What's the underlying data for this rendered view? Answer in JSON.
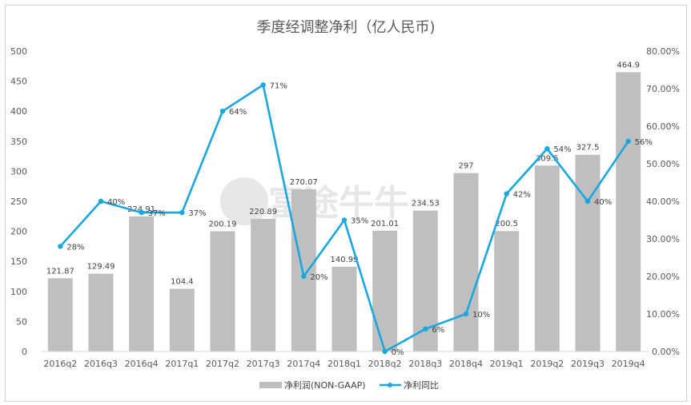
{
  "chart_data": {
    "type": "bar",
    "title": "季度经调整净利（亿人民币)",
    "watermark": "富途牛牛",
    "categories": [
      "2016q2",
      "2016q3",
      "2016q4",
      "2017q1",
      "2017q2",
      "2017q3",
      "2017q4",
      "2018q1",
      "2018q2",
      "2018q3",
      "2018q4",
      "2019q1",
      "2019q2",
      "2019q3",
      "2019q4"
    ],
    "series": [
      {
        "name": "净利润(NON-GAAP)",
        "type": "bar",
        "axis": "left",
        "color": "#bfbfbf",
        "values": [
          121.87,
          129.49,
          224.91,
          104.4,
          200.19,
          220.89,
          270.07,
          140.99,
          201.01,
          234.53,
          297,
          200.5,
          309.5,
          327.5,
          464.9
        ],
        "labels": [
          "121.87",
          "129.49",
          "224.91",
          "104.4",
          "200.19",
          "220.89",
          "270.07",
          "140.99",
          "201.01",
          "234.53",
          "297",
          "200.5",
          "309.5",
          "327.5",
          "464.9"
        ]
      },
      {
        "name": "净利同比",
        "type": "line",
        "axis": "right",
        "color": "#1aa7df",
        "values": [
          0.28,
          0.4,
          0.37,
          0.37,
          0.64,
          0.71,
          0.2,
          0.35,
          0.0,
          0.06,
          0.1,
          0.42,
          0.54,
          0.4,
          0.56
        ],
        "labels": [
          "28%",
          "40%",
          "37%",
          "37%",
          "64%",
          "71%",
          "20%",
          "35%",
          "0%",
          "6%",
          "10%",
          "42%",
          "54%",
          "40%",
          "56%"
        ]
      }
    ],
    "y_left": {
      "min": 0,
      "max": 500,
      "ticks": [
        "0",
        "50",
        "100",
        "150",
        "200",
        "250",
        "300",
        "350",
        "400",
        "450",
        "500"
      ]
    },
    "y_right": {
      "min": 0,
      "max": 0.8,
      "ticks": [
        "0.00%",
        "10.00%",
        "20.00%",
        "30.00%",
        "40.00%",
        "50.00%",
        "60.00%",
        "70.00%",
        "80.00%"
      ]
    },
    "grid": false,
    "legend_position": "bottom"
  }
}
